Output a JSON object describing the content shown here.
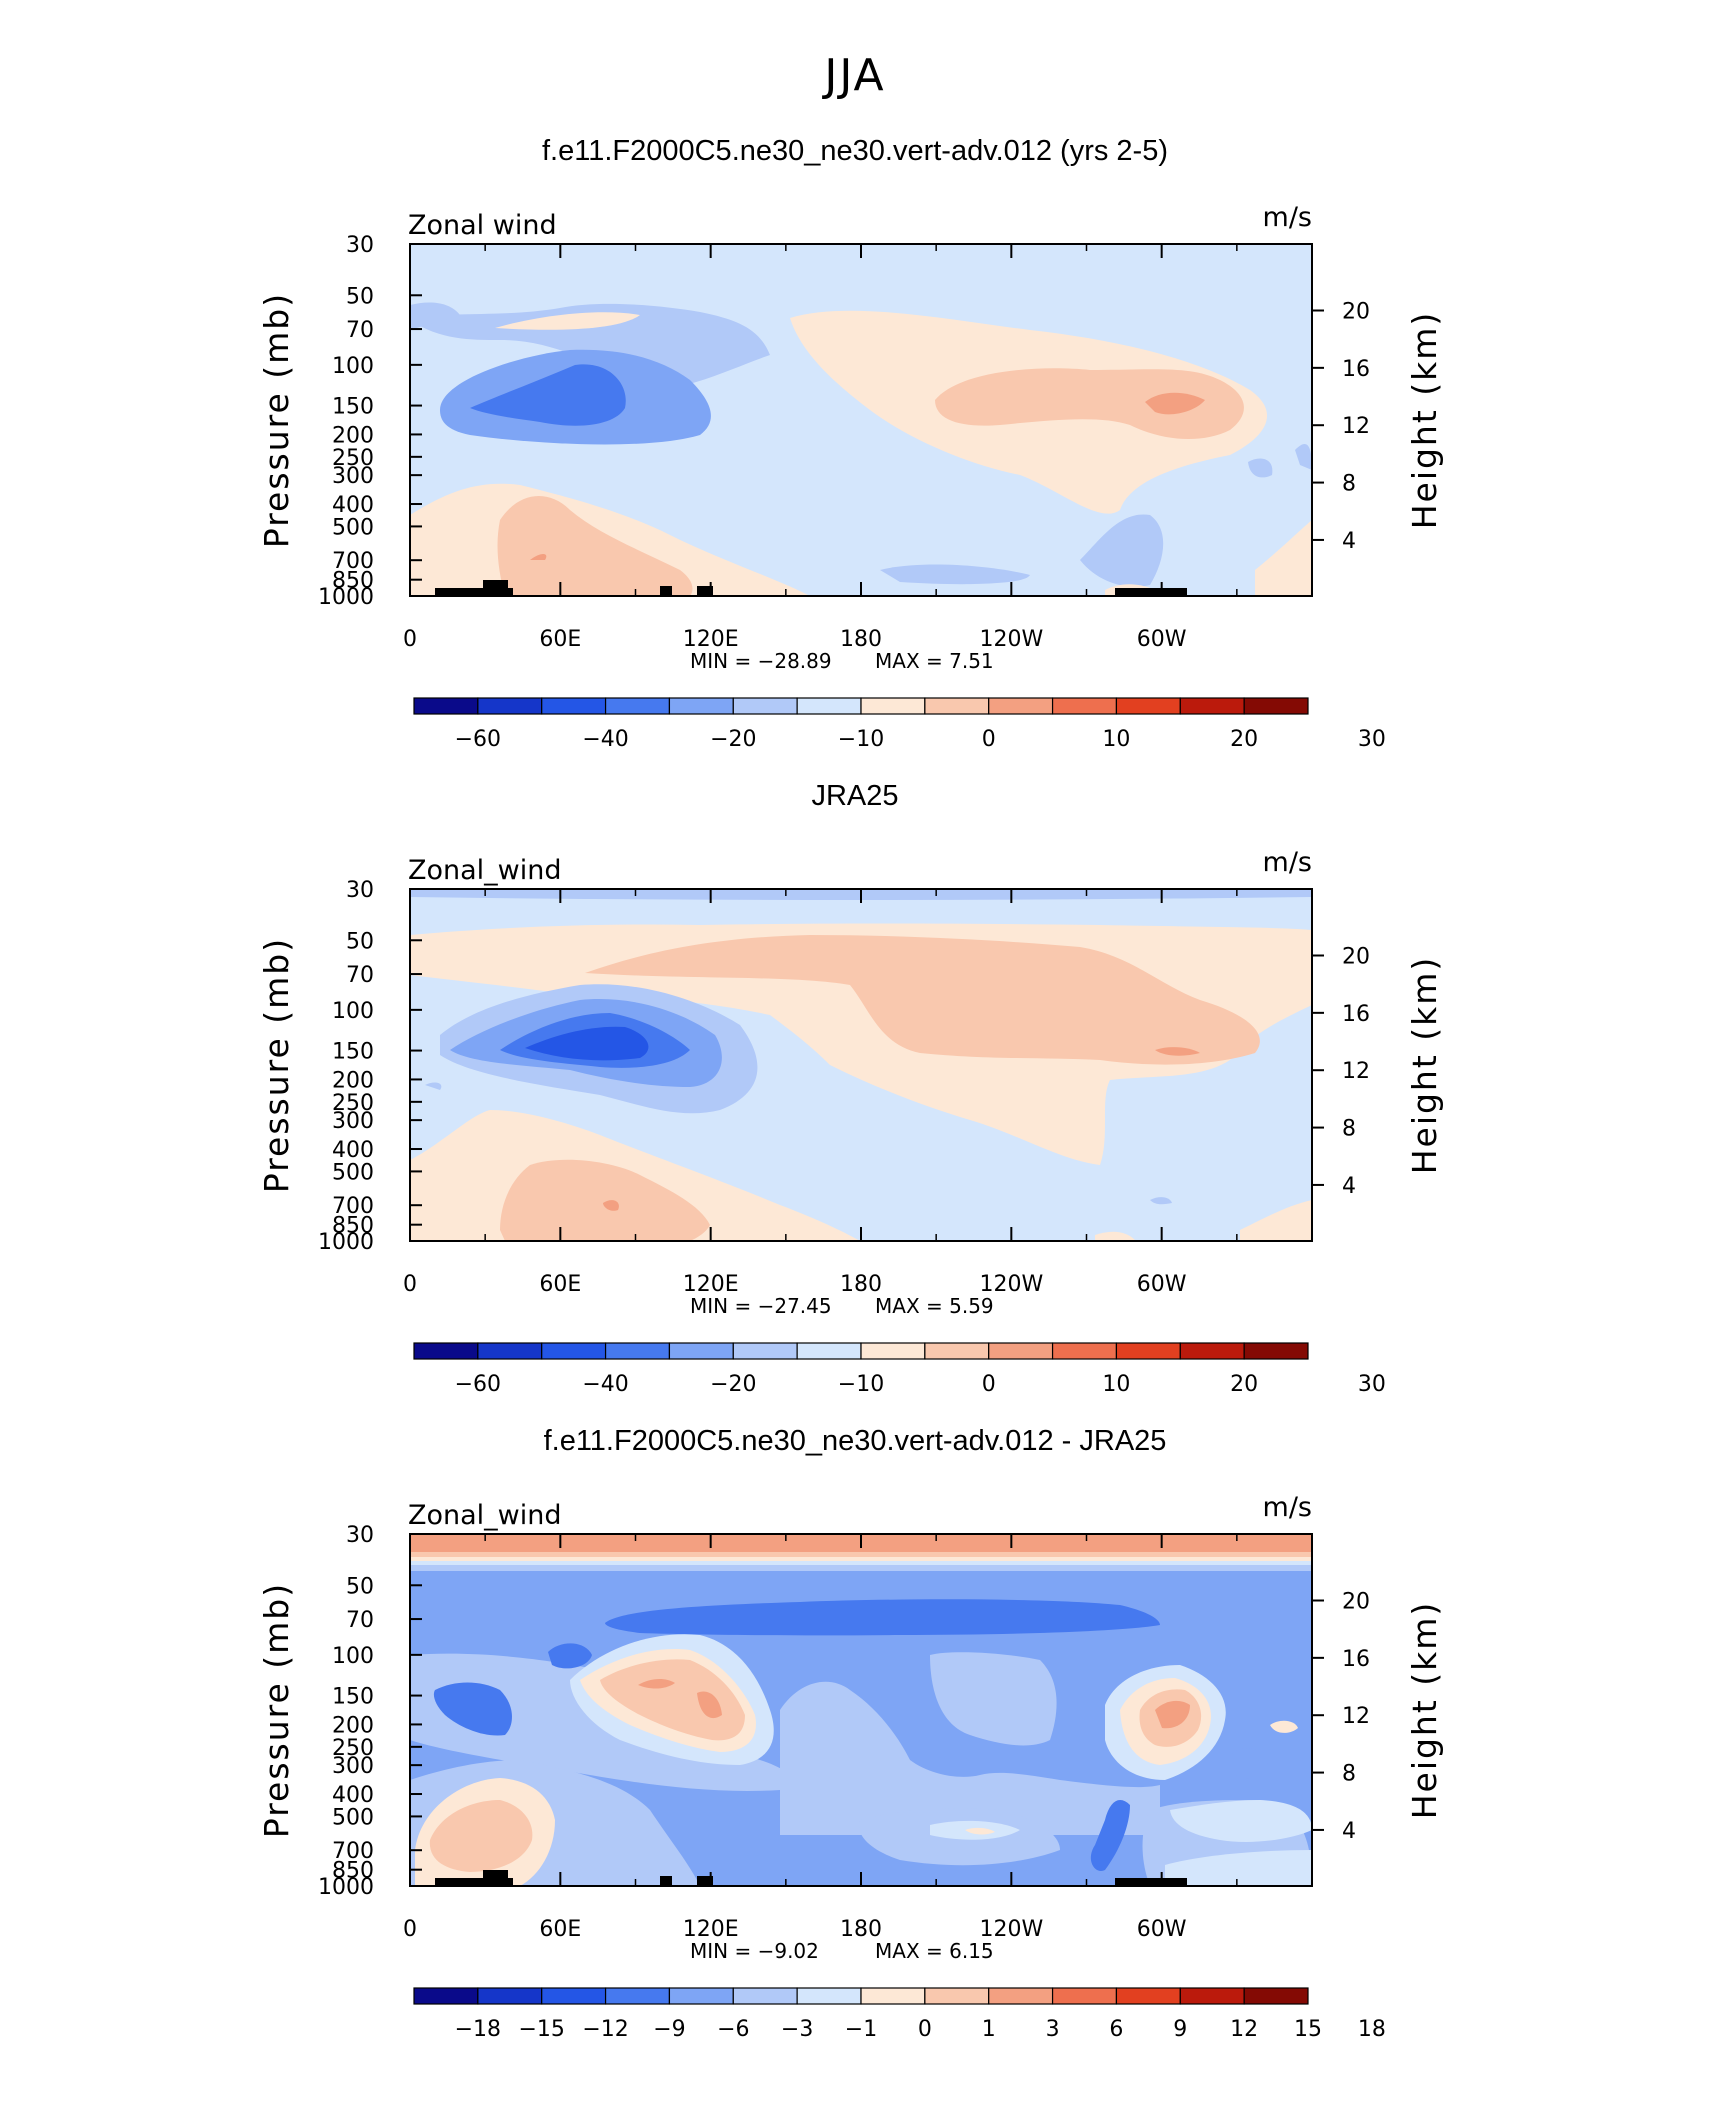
{
  "main_title": "JJA",
  "chart_data": [
    {
      "type": "contour",
      "title": "f.e11.F2000C5.ne30_ne30.vert-adv.012 (yrs 2-5)",
      "variable": "Zonal wind",
      "units": "m/s",
      "ylabel": "Pressure (mb)",
      "y2label": "Height (km)",
      "x_ticks": [
        "0",
        "60E",
        "120E",
        "180",
        "120W",
        "60W"
      ],
      "y_ticks": [
        "30",
        "50",
        "70",
        "100",
        "150",
        "200",
        "250",
        "300",
        "400",
        "500",
        "700",
        "850",
        "1000"
      ],
      "y2_ticks": [
        "20",
        "16",
        "12",
        "8",
        "4"
      ],
      "min_label": "MIN = −28.89",
      "max_label": "MAX = 7.51",
      "min": -28.89,
      "max": 7.51,
      "colorbar_labels": [
        "−60",
        "−40",
        "−20",
        "−10",
        "0",
        "10",
        "20",
        "30"
      ],
      "features": [
        {
          "lon": 60,
          "p": 150,
          "value": -28.89
        },
        {
          "lon": 300,
          "p": 150,
          "value": 7.51
        },
        {
          "lon": 50,
          "p": 700,
          "value": 5
        }
      ]
    },
    {
      "type": "contour",
      "title": "JRA25",
      "variable": "Zonal_wind",
      "units": "m/s",
      "ylabel": "Pressure (mb)",
      "y2label": "Height (km)",
      "x_ticks": [
        "0",
        "60E",
        "120E",
        "180",
        "120W",
        "60W"
      ],
      "y_ticks": [
        "30",
        "50",
        "70",
        "100",
        "150",
        "200",
        "250",
        "300",
        "400",
        "500",
        "700",
        "850",
        "1000"
      ],
      "y2_ticks": [
        "20",
        "16",
        "12",
        "8",
        "4"
      ],
      "min_label": "MIN = −27.45",
      "max_label": "MAX = 5.59",
      "min": -27.45,
      "max": 5.59,
      "colorbar_labels": [
        "−60",
        "−40",
        "−20",
        "−10",
        "0",
        "10",
        "20",
        "30"
      ],
      "features": [
        {
          "lon": 75,
          "p": 150,
          "value": -27.45
        },
        {
          "lon": 300,
          "p": 150,
          "value": 5.59
        },
        {
          "lon": 80,
          "p": 700,
          "value": 5
        }
      ]
    },
    {
      "type": "contour",
      "title": "f.e11.F2000C5.ne30_ne30.vert-adv.012 - JRA25",
      "variable": "Zonal_wind",
      "units": "m/s",
      "ylabel": "Pressure (mb)",
      "y2label": "Height (km)",
      "x_ticks": [
        "0",
        "60E",
        "120E",
        "180",
        "120W",
        "60W"
      ],
      "y_ticks": [
        "30",
        "50",
        "70",
        "100",
        "150",
        "200",
        "250",
        "300",
        "400",
        "500",
        "700",
        "850",
        "1000"
      ],
      "y2_ticks": [
        "20",
        "16",
        "12",
        "8",
        "4"
      ],
      "min_label": "MIN = −9.02",
      "max_label": "MAX = 6.15",
      "min": -9.02,
      "max": 6.15,
      "colorbar_labels": [
        "−18",
        "−15",
        "−12",
        "−9",
        "−6",
        "−3",
        "−1",
        "0",
        "1",
        "3",
        "6",
        "9",
        "12",
        "15",
        "18"
      ],
      "features": [
        {
          "lon": 160,
          "p": 70,
          "value": -9.02
        },
        {
          "lon": 300,
          "p": 200,
          "value": 6.15
        },
        {
          "lon": 95,
          "p": 150,
          "value": 4
        }
      ]
    }
  ],
  "colors": {
    "palette": [
      "#0a0a8a",
      "#1536c9",
      "#2456e6",
      "#4679ef",
      "#7ea5f5",
      "#b1c9f8",
      "#d4e6fc",
      "#fde8d6",
      "#f9c8ae",
      "#f3a081",
      "#ee6f4e",
      "#e24020",
      "#bb1a0c",
      "#840a04"
    ]
  }
}
